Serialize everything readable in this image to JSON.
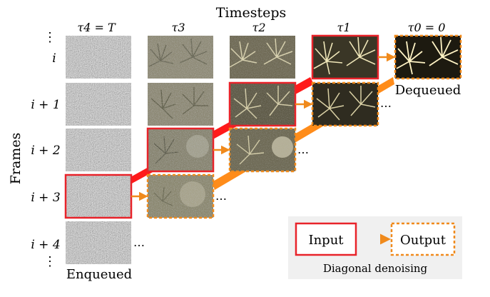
{
  "header": {
    "title": "Timesteps"
  },
  "axis": {
    "ylabel": "Frames"
  },
  "timestep_labels": [
    "τ4 = T",
    "τ3",
    "τ2",
    "τ1",
    "τ0 = 0"
  ],
  "frame_labels": [
    "⋮",
    "i",
    "i + 1",
    "i + 2",
    "i + 3",
    "i + 4",
    "⋮"
  ],
  "annotations": {
    "dequeued": "Dequeued",
    "enqueued": "Enqueued",
    "ellipsis": "…"
  },
  "legend": {
    "input_label": "Input",
    "output_label": "Output",
    "caption": "Diagonal denoising"
  },
  "colors": {
    "input_border": "#e8232a",
    "output_border": "#f08a1c",
    "diagonal_red": "#ff1a1a",
    "diagonal_orange": "#ff8c1a",
    "legend_bg": "#f0f0f0"
  }
}
